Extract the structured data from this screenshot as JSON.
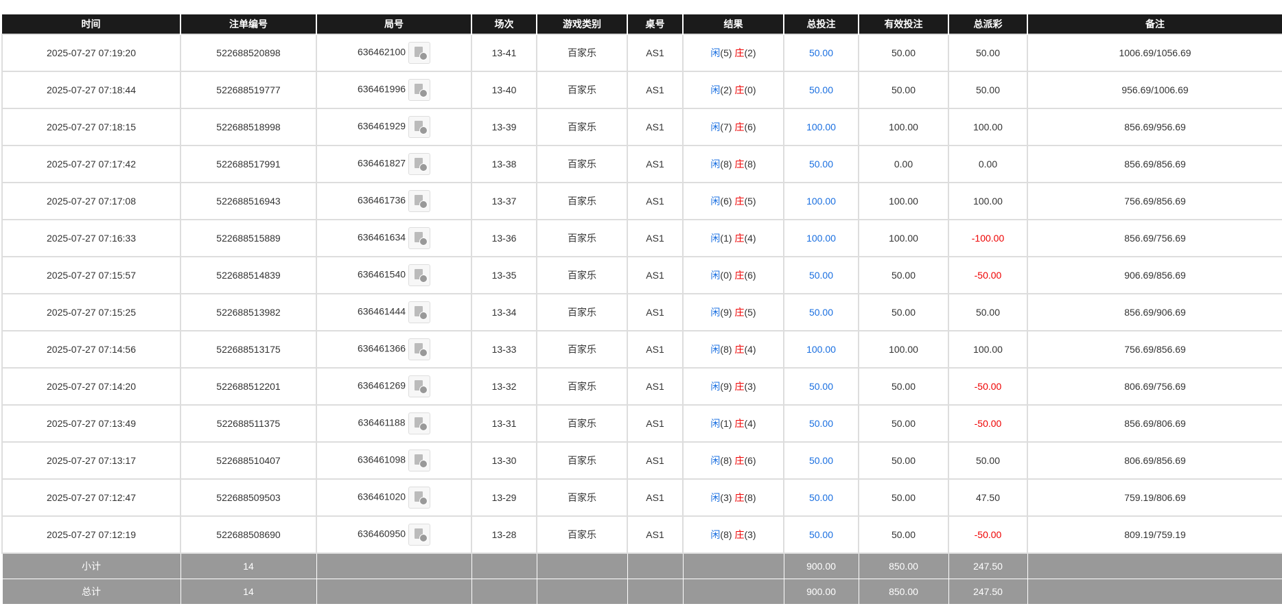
{
  "table": {
    "headers": [
      "时间",
      "注单编号",
      "局号",
      "场次",
      "游戏类别",
      "桌号",
      "结果",
      "总投注",
      "有效投注",
      "总派彩",
      "备注"
    ],
    "result_labels": {
      "player": "闲",
      "banker": "庄"
    },
    "rows": [
      [
        "2025-07-27 07:19:20",
        "522688520898",
        "636462100",
        "13-41",
        "百家乐",
        "AS1",
        "(5)",
        "(2)",
        "50.00",
        "50.00",
        "50.00",
        "1006.69/1056.69"
      ],
      [
        "2025-07-27 07:18:44",
        "522688519777",
        "636461996",
        "13-40",
        "百家乐",
        "AS1",
        "(2)",
        "(0)",
        "50.00",
        "50.00",
        "50.00",
        "956.69/1006.69"
      ],
      [
        "2025-07-27 07:18:15",
        "522688518998",
        "636461929",
        "13-39",
        "百家乐",
        "AS1",
        "(7)",
        "(6)",
        "100.00",
        "100.00",
        "100.00",
        "856.69/956.69"
      ],
      [
        "2025-07-27 07:17:42",
        "522688517991",
        "636461827",
        "13-38",
        "百家乐",
        "AS1",
        "(8)",
        "(8)",
        "50.00",
        "0.00",
        "0.00",
        "856.69/856.69"
      ],
      [
        "2025-07-27 07:17:08",
        "522688516943",
        "636461736",
        "13-37",
        "百家乐",
        "AS1",
        "(6)",
        "(5)",
        "100.00",
        "100.00",
        "100.00",
        "756.69/856.69"
      ],
      [
        "2025-07-27 07:16:33",
        "522688515889",
        "636461634",
        "13-36",
        "百家乐",
        "AS1",
        "(1)",
        "(4)",
        "100.00",
        "100.00",
        "-100.00",
        "856.69/756.69"
      ],
      [
        "2025-07-27 07:15:57",
        "522688514839",
        "636461540",
        "13-35",
        "百家乐",
        "AS1",
        "(0)",
        "(6)",
        "50.00",
        "50.00",
        "-50.00",
        "906.69/856.69"
      ],
      [
        "2025-07-27 07:15:25",
        "522688513982",
        "636461444",
        "13-34",
        "百家乐",
        "AS1",
        "(9)",
        "(5)",
        "50.00",
        "50.00",
        "50.00",
        "856.69/906.69"
      ],
      [
        "2025-07-27 07:14:56",
        "522688513175",
        "636461366",
        "13-33",
        "百家乐",
        "AS1",
        "(8)",
        "(4)",
        "100.00",
        "100.00",
        "100.00",
        "756.69/856.69"
      ],
      [
        "2025-07-27 07:14:20",
        "522688512201",
        "636461269",
        "13-32",
        "百家乐",
        "AS1",
        "(9)",
        "(3)",
        "50.00",
        "50.00",
        "-50.00",
        "806.69/756.69"
      ],
      [
        "2025-07-27 07:13:49",
        "522688511375",
        "636461188",
        "13-31",
        "百家乐",
        "AS1",
        "(1)",
        "(4)",
        "50.00",
        "50.00",
        "-50.00",
        "856.69/806.69"
      ],
      [
        "2025-07-27 07:13:17",
        "522688510407",
        "636461098",
        "13-30",
        "百家乐",
        "AS1",
        "(8)",
        "(6)",
        "50.00",
        "50.00",
        "50.00",
        "806.69/856.69"
      ],
      [
        "2025-07-27 07:12:47",
        "522688509503",
        "636461020",
        "13-29",
        "百家乐",
        "AS1",
        "(3)",
        "(8)",
        "50.00",
        "50.00",
        "47.50",
        "759.19/806.69"
      ],
      [
        "2025-07-27 07:12:19",
        "522688508690",
        "636460950",
        "13-28",
        "百家乐",
        "AS1",
        "(8)",
        "(3)",
        "50.00",
        "50.00",
        "-50.00",
        "809.19/759.19"
      ]
    ],
    "footer": [
      {
        "label": "小计",
        "count": "14",
        "total": "900.00",
        "valid": "850.00",
        "payout": "247.50"
      },
      {
        "label": "总计",
        "count": "14",
        "total": "900.00",
        "valid": "850.00",
        "payout": "247.50"
      }
    ]
  }
}
